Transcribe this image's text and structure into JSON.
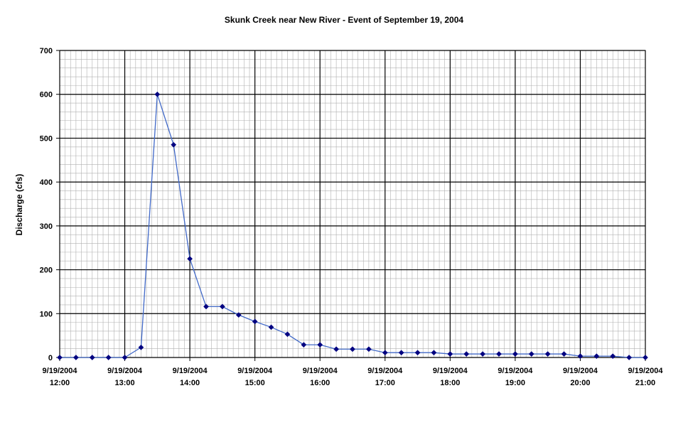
{
  "chart_data": {
    "type": "line",
    "title": "Skunk Creek near New River - Event of September 19, 2004",
    "xlabel": "",
    "ylabel": "Discharge (cfs)",
    "ylim": [
      0,
      700
    ],
    "y_ticks": [
      0,
      100,
      200,
      300,
      400,
      500,
      600,
      700
    ],
    "x_range_hours": [
      12,
      21
    ],
    "x_ticks": [
      {
        "hour": 12,
        "date": "9/19/2004",
        "time": "12:00"
      },
      {
        "hour": 13,
        "date": "9/19/2004",
        "time": "13:00"
      },
      {
        "hour": 14,
        "date": "9/19/2004",
        "time": "14:00"
      },
      {
        "hour": 15,
        "date": "9/19/2004",
        "time": "15:00"
      },
      {
        "hour": 16,
        "date": "9/19/2004",
        "time": "16:00"
      },
      {
        "hour": 17,
        "date": "9/19/2004",
        "time": "17:00"
      },
      {
        "hour": 18,
        "date": "9/19/2004",
        "time": "18:00"
      },
      {
        "hour": 19,
        "date": "9/19/2004",
        "time": "19:00"
      },
      {
        "hour": 20,
        "date": "9/19/2004",
        "time": "20:00"
      },
      {
        "hour": 21,
        "date": "9/19/2004",
        "time": "21:00"
      }
    ],
    "grid": true,
    "legend": "none",
    "colors": {
      "line": "#4169c8",
      "marker": "#000080",
      "major_grid": "#000000",
      "minor_grid": "#b0b0b0"
    },
    "series": [
      {
        "x": [
          "12:00",
          "12:15",
          "12:30",
          "12:45",
          "13:00",
          "13:15",
          "13:30",
          "13:45",
          "14:00",
          "14:15",
          "14:30",
          "14:45",
          "15:00",
          "15:15",
          "15:30",
          "15:45",
          "16:00",
          "16:15",
          "16:30",
          "16:45",
          "17:00",
          "17:15",
          "17:30",
          "17:45",
          "18:00",
          "18:15",
          "18:30",
          "18:45",
          "19:00",
          "19:15",
          "19:30",
          "19:45",
          "20:00",
          "20:15",
          "20:30",
          "20:45",
          "21:00"
        ],
        "values": [
          0,
          0,
          0,
          0,
          0,
          23,
          600,
          485,
          225,
          116,
          116,
          97,
          82,
          69,
          53,
          29,
          29,
          19,
          19,
          19,
          11,
          11,
          11,
          11,
          8,
          8,
          8,
          8,
          8,
          8,
          8,
          8,
          3,
          3,
          3,
          0,
          0
        ]
      }
    ]
  }
}
